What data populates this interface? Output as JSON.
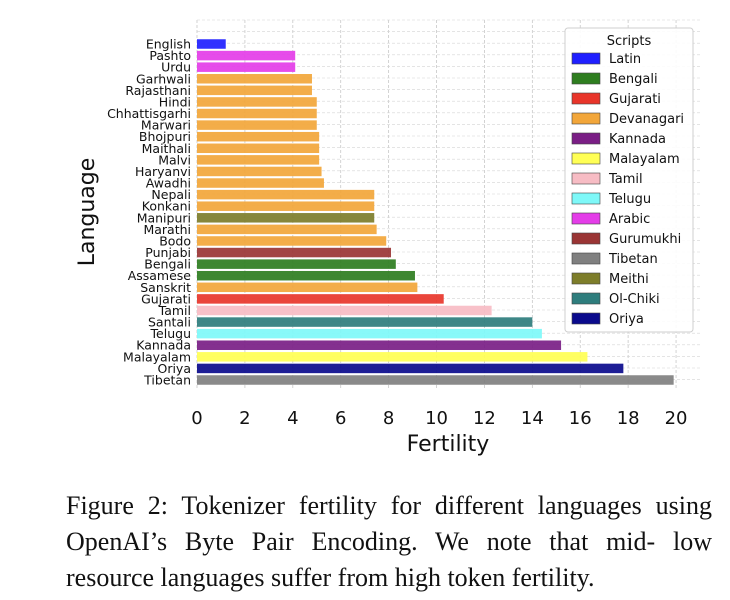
{
  "chart_data": {
    "type": "bar",
    "orientation": "horizontal",
    "xlabel": "Fertility",
    "ylabel": "Language",
    "xlim": [
      0,
      21
    ],
    "xticks": [
      0,
      2,
      4,
      6,
      8,
      10,
      12,
      14,
      16,
      18,
      20
    ],
    "grid": true,
    "legend_title": "Scripts",
    "legend_position": "top-right",
    "legend": [
      {
        "name": "Latin",
        "color": "#1f1fff"
      },
      {
        "name": "Bengali",
        "color": "#2e7d1f"
      },
      {
        "name": "Gujarati",
        "color": "#e8352a"
      },
      {
        "name": "Devanagari",
        "color": "#f2a63a"
      },
      {
        "name": "Kannada",
        "color": "#7a1e85"
      },
      {
        "name": "Malayalam",
        "color": "#ffff55"
      },
      {
        "name": "Tamil",
        "color": "#f7bcc4"
      },
      {
        "name": "Telugu",
        "color": "#7ef8f8"
      },
      {
        "name": "Arabic",
        "color": "#e43de8"
      },
      {
        "name": "Gurumukhi",
        "color": "#9a3535"
      },
      {
        "name": "Tibetan",
        "color": "#808080"
      },
      {
        "name": "Meithi",
        "color": "#7d7d2a"
      },
      {
        "name": "Ol-Chiki",
        "color": "#2e7d7d"
      },
      {
        "name": "Oriya",
        "color": "#0a0a8c"
      }
    ],
    "bars": [
      {
        "language": "English",
        "value": 1.2,
        "script": "Latin"
      },
      {
        "language": "Pashto",
        "value": 4.1,
        "script": "Arabic"
      },
      {
        "language": "Urdu",
        "value": 4.1,
        "script": "Arabic"
      },
      {
        "language": "Garhwali",
        "value": 4.8,
        "script": "Devanagari"
      },
      {
        "language": "Rajasthani",
        "value": 4.8,
        "script": "Devanagari"
      },
      {
        "language": "Hindi",
        "value": 5.0,
        "script": "Devanagari"
      },
      {
        "language": "Chhattisgarhi",
        "value": 5.0,
        "script": "Devanagari"
      },
      {
        "language": "Marwari",
        "value": 5.0,
        "script": "Devanagari"
      },
      {
        "language": "Bhojpuri",
        "value": 5.1,
        "script": "Devanagari"
      },
      {
        "language": "Maithali",
        "value": 5.1,
        "script": "Devanagari"
      },
      {
        "language": "Malvi",
        "value": 5.1,
        "script": "Devanagari"
      },
      {
        "language": "Haryanvi",
        "value": 5.2,
        "script": "Devanagari"
      },
      {
        "language": "Awadhi",
        "value": 5.3,
        "script": "Devanagari"
      },
      {
        "language": "Nepali",
        "value": 7.4,
        "script": "Devanagari"
      },
      {
        "language": "Konkani",
        "value": 7.4,
        "script": "Devanagari"
      },
      {
        "language": "Manipuri",
        "value": 7.4,
        "script": "Meithi"
      },
      {
        "language": "Marathi",
        "value": 7.5,
        "script": "Devanagari"
      },
      {
        "language": "Bodo",
        "value": 7.9,
        "script": "Devanagari"
      },
      {
        "language": "Punjabi",
        "value": 8.1,
        "script": "Gurumukhi"
      },
      {
        "language": "Bengali",
        "value": 8.3,
        "script": "Bengali"
      },
      {
        "language": "Assamese",
        "value": 9.1,
        "script": "Bengali"
      },
      {
        "language": "Sanskrit",
        "value": 9.2,
        "script": "Devanagari"
      },
      {
        "language": "Gujarati",
        "value": 10.3,
        "script": "Gujarati"
      },
      {
        "language": "Tamil",
        "value": 12.3,
        "script": "Tamil"
      },
      {
        "language": "Santali",
        "value": 14.0,
        "script": "Ol-Chiki"
      },
      {
        "language": "Telugu",
        "value": 14.4,
        "script": "Telugu"
      },
      {
        "language": "Kannada",
        "value": 15.2,
        "script": "Kannada"
      },
      {
        "language": "Malayalam",
        "value": 16.3,
        "script": "Malayalam"
      },
      {
        "language": "Oriya",
        "value": 17.8,
        "script": "Oriya"
      },
      {
        "language": "Tibetan",
        "value": 19.9,
        "script": "Tibetan"
      }
    ]
  },
  "caption": {
    "line1": "Figure 2:  Tokenizer fertility for different languages",
    "line2": "using OpenAI’s Byte Pair Encoding. We note that mid-",
    "line3": "low resource languages suffer from high token fertility."
  }
}
